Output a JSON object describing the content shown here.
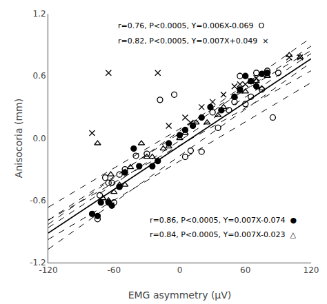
{
  "chart_data": {
    "type": "scatter",
    "xlabel": "EMG asymmetry (μV)",
    "ylabel": "Anisocoria (mm)",
    "xlim": [
      -120,
      120
    ],
    "ylim": [
      -1.2,
      1.2
    ],
    "xticks": [
      -120,
      -60,
      0,
      60,
      120
    ],
    "yticks": [
      -1.2,
      -0.6,
      {
        "value": 0,
        "label": "0.0"
      },
      0.6,
      1.2
    ],
    "grid": false,
    "series": [
      {
        "type": "scatter",
        "marker": "circle-open",
        "color": "black",
        "x": [
          -75,
          -73,
          -68,
          -65,
          -62,
          -60,
          -55,
          -50,
          -40,
          -30,
          -18,
          -5,
          5,
          10,
          20,
          30,
          35,
          45,
          50,
          55,
          60,
          65,
          70,
          75,
          80,
          85,
          90
        ],
        "values": [
          -0.78,
          -0.55,
          -0.38,
          -0.43,
          -0.43,
          -0.62,
          -0.35,
          -0.3,
          -0.17,
          -0.15,
          0.37,
          0.42,
          -0.18,
          -0.12,
          -0.13,
          0.25,
          0.1,
          0.27,
          0.35,
          0.6,
          0.33,
          0.4,
          0.63,
          0.47,
          0.65,
          0.2,
          0.63
        ]
      },
      {
        "type": "scatter",
        "marker": "x-thin-open",
        "color": "black",
        "x": [
          -80,
          -65,
          -20,
          -10,
          5,
          10,
          20,
          30,
          40,
          50,
          55,
          60,
          65,
          70,
          80,
          100,
          110
        ],
        "values": [
          0.05,
          0.63,
          0.63,
          0.12,
          0.2,
          0.15,
          0.3,
          0.35,
          0.42,
          0.5,
          0.52,
          0.52,
          0.55,
          0.58,
          0.62,
          0.78,
          0.78
        ]
      },
      {
        "type": "scatter",
        "marker": "circle",
        "color": "black",
        "x": [
          -80,
          -75,
          -72,
          -65,
          -62,
          -55,
          -50,
          -42,
          -37,
          -25,
          -20,
          -10,
          0,
          5,
          12,
          20,
          28,
          38,
          50,
          55,
          60,
          65,
          70,
          75,
          80
        ],
        "values": [
          -0.73,
          -0.75,
          -0.62,
          -0.62,
          -0.65,
          -0.47,
          -0.33,
          -0.1,
          -0.27,
          -0.27,
          -0.22,
          -0.05,
          0.03,
          0.08,
          0.12,
          0.2,
          0.3,
          0.27,
          0.4,
          0.47,
          0.6,
          0.55,
          0.5,
          0.62,
          0.63
        ]
      },
      {
        "type": "scatter",
        "marker": "triangle-up-open",
        "color": "black",
        "x": [
          -75,
          -70,
          -65,
          -63,
          -60,
          -55,
          -50,
          -45,
          -35,
          -30,
          -25,
          -15,
          -10,
          0,
          5,
          15,
          25,
          35,
          40,
          50,
          55,
          60,
          65,
          70,
          75,
          80,
          100,
          110
        ],
        "values": [
          -0.05,
          -0.58,
          -0.6,
          -0.35,
          -0.52,
          -0.45,
          -0.45,
          -0.28,
          -0.05,
          -0.18,
          -0.18,
          -0.1,
          -0.08,
          0.0,
          0.05,
          0.15,
          0.15,
          0.22,
          0.3,
          0.4,
          0.45,
          0.45,
          0.55,
          0.55,
          0.48,
          0.6,
          0.8,
          0.78
        ]
      },
      {
        "type": "line",
        "line_style": "dashed",
        "color": "black",
        "x": [
          -120,
          120
        ],
        "values": [
          -0.789,
          0.651
        ]
      },
      {
        "type": "line",
        "line_style": "dashed",
        "color": "black",
        "x": [
          -120,
          120
        ],
        "values": [
          -0.791,
          0.889
        ]
      },
      {
        "type": "line",
        "line_style": "solid",
        "color": "black",
        "x": [
          -120,
          120
        ],
        "values": [
          -0.914,
          0.766
        ]
      },
      {
        "type": "line",
        "line_style": "dashed",
        "color": "black",
        "x": [
          -120,
          120
        ],
        "values": [
          -0.863,
          0.817
        ]
      },
      {
        "type": "line",
        "line_style": "dashed",
        "color": "black",
        "x": [
          -120,
          120
        ],
        "values": [
          -0.666,
          0.846
        ]
      },
      {
        "type": "line",
        "line_style": "dashed",
        "color": "black",
        "x": [
          -120,
          120
        ],
        "values": [
          -0.976,
          0.536
        ]
      },
      {
        "type": "line",
        "line_style": "dashed",
        "color": "black",
        "x": [
          -120,
          120
        ],
        "values": [
          -0.83,
          0.97
        ]
      },
      {
        "type": "line",
        "line_style": "dashed",
        "color": "black",
        "x": [
          -120,
          120
        ],
        "values": [
          -1.07,
          0.73
        ]
      }
    ],
    "annotations": [
      "r=0.76, P<0.0005, Y=0.006X-0.069  O",
      "r=0.82, P<0.0005, Y=0.007X+0.049  ×",
      "r=0.86, P<0.0005, Y=0.007X-0.074  ●",
      "r=0.84, P<0.0005, Y=0.007X-0.023  △"
    ]
  }
}
